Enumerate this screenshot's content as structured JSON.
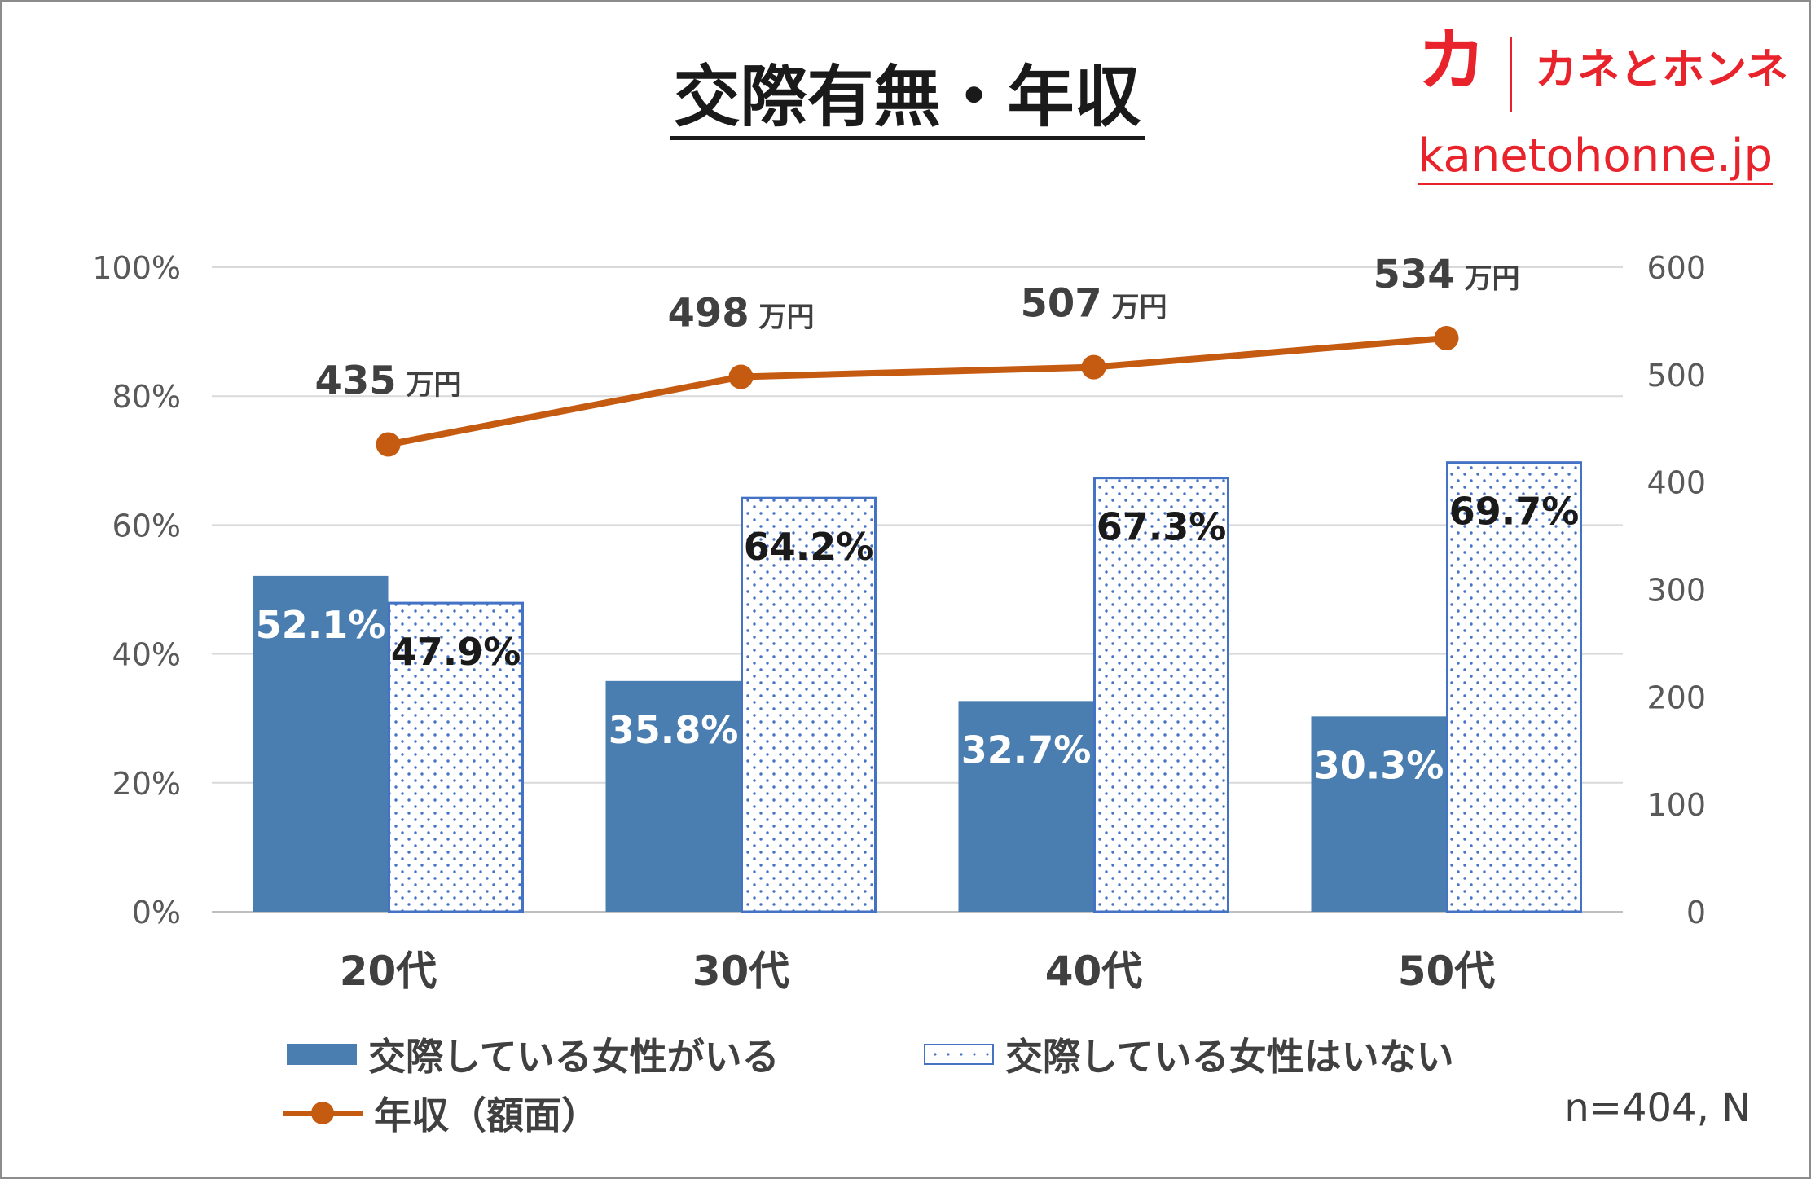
{
  "title": "交際有無・年収",
  "brand": {
    "mark": "カ",
    "name": "カネとホンネ",
    "url": "kanetohonne.jp"
  },
  "colors": {
    "dating_bar": "#4a7eb0",
    "not_dating_bar": "#4472c4",
    "income_line": "#c55a11",
    "brand_red": "#e8232b",
    "gridline": "#d9d9d9",
    "tick_text": "#595959"
  },
  "chart_data": {
    "type": "bar",
    "categories": [
      "20代",
      "30代",
      "40代",
      "50代"
    ],
    "series": [
      {
        "name": "交際している女性がいる",
        "axis": "left",
        "style": "solid",
        "values": [
          52.1,
          35.8,
          32.7,
          30.3
        ],
        "labels": [
          "52.1%",
          "35.8%",
          "32.7%",
          "30.3%"
        ]
      },
      {
        "name": "交際している女性はいない",
        "axis": "left",
        "style": "dotted",
        "values": [
          47.9,
          64.2,
          67.3,
          69.7
        ],
        "labels": [
          "47.9%",
          "64.2%",
          "67.3%",
          "69.7%"
        ]
      },
      {
        "name": "年収（額面）",
        "axis": "right",
        "type": "line",
        "values": [
          435,
          498,
          507,
          534
        ],
        "labels": [
          "435",
          "498",
          "507",
          "534"
        ],
        "label_unit": "万円"
      }
    ],
    "left_axis": {
      "ylim": [
        0,
        100
      ],
      "ticks": [
        "0%",
        "20%",
        "40%",
        "60%",
        "80%",
        "100%"
      ]
    },
    "right_axis": {
      "ylim": [
        0,
        600
      ],
      "ticks": [
        "0",
        "100",
        "200",
        "300",
        "400",
        "500",
        "600"
      ]
    },
    "grid": true,
    "legend": "bottom"
  },
  "note": "n=404, N"
}
